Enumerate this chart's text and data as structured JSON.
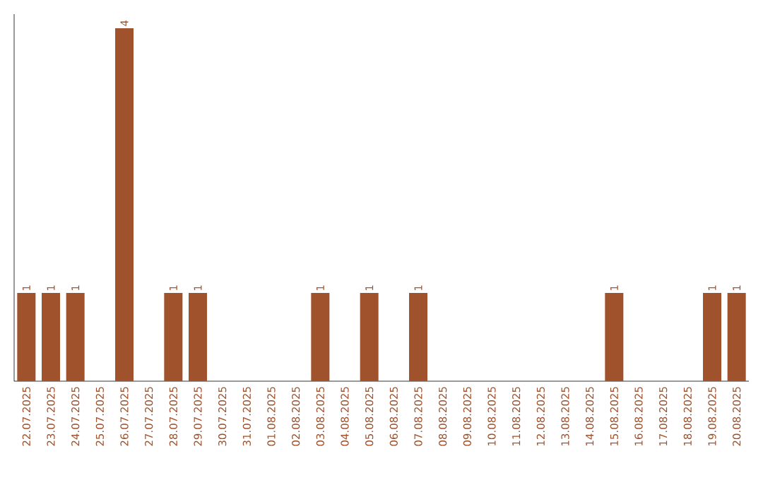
{
  "chart_data": {
    "type": "bar",
    "categories": [
      "22.07.2025",
      "23.07.2025",
      "24.07.2025",
      "25.07.2025",
      "26.07.2025",
      "27.07.2025",
      "28.07.2025",
      "29.07.2025",
      "30.07.2025",
      "31.07.2025",
      "01.08.2025",
      "02.08.2025",
      "03.08.2025",
      "04.08.2025",
      "05.08.2025",
      "06.08.2025",
      "07.08.2025",
      "08.08.2025",
      "09.08.2025",
      "10.08.2025",
      "11.08.2025",
      "12.08.2025",
      "13.08.2025",
      "14.08.2025",
      "15.08.2025",
      "16.08.2025",
      "17.08.2025",
      "18.08.2025",
      "19.08.2025",
      "20.08.2025"
    ],
    "values": [
      1,
      1,
      1,
      0,
      4,
      0,
      1,
      1,
      0,
      0,
      0,
      0,
      1,
      0,
      1,
      0,
      1,
      0,
      0,
      0,
      0,
      0,
      0,
      0,
      1,
      0,
      0,
      0,
      1,
      1
    ],
    "value_labels": [
      "1",
      "1",
      "1",
      null,
      "4",
      null,
      "1",
      "1",
      null,
      null,
      null,
      null,
      "1",
      null,
      "1",
      null,
      "1",
      null,
      null,
      null,
      null,
      null,
      null,
      null,
      "1",
      null,
      null,
      null,
      "1",
      "1"
    ],
    "color": "#a0522d"
  }
}
